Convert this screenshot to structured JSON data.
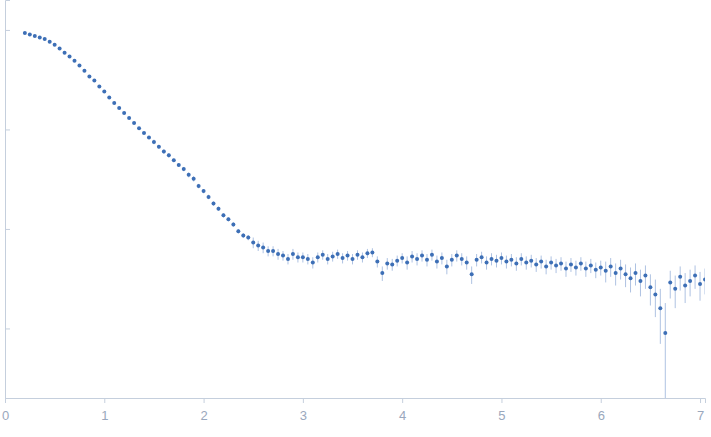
{
  "chart_data": {
    "type": "scatter",
    "log": "y",
    "tick_labels": "x",
    "color": "#3d6fb6",
    "marker": "circle",
    "xlim": [
      0,
      7.05
    ],
    "ylim": [
      0.0002,
      2
    ],
    "xticks": [
      0,
      1,
      2,
      3,
      4,
      5,
      6,
      7
    ],
    "yticks": [
      0.001,
      0.01,
      0.1,
      1
    ],
    "x": [
      0.2,
      0.25,
      0.3,
      0.35,
      0.4,
      0.45,
      0.5,
      0.55,
      0.6,
      0.65,
      0.7,
      0.75,
      0.8,
      0.85,
      0.9,
      0.95,
      1.0,
      1.05,
      1.1,
      1.15,
      1.2,
      1.25,
      1.3,
      1.35,
      1.4,
      1.45,
      1.5,
      1.55,
      1.6,
      1.65,
      1.7,
      1.75,
      1.8,
      1.85,
      1.9,
      1.95,
      2.0,
      2.05,
      2.1,
      2.15,
      2.2,
      2.25,
      2.3,
      2.35,
      2.4,
      2.45,
      2.5,
      2.55,
      2.6,
      2.65,
      2.7,
      2.75,
      2.8,
      2.85,
      2.9,
      2.95,
      3.0,
      3.05,
      3.1,
      3.15,
      3.2,
      3.25,
      3.3,
      3.35,
      3.4,
      3.45,
      3.5,
      3.55,
      3.6,
      3.65,
      3.7,
      3.75,
      3.8,
      3.85,
      3.9,
      3.95,
      4.0,
      4.05,
      4.1,
      4.15,
      4.2,
      4.25,
      4.3,
      4.35,
      4.4,
      4.45,
      4.5,
      4.55,
      4.6,
      4.65,
      4.7,
      4.75,
      4.8,
      4.85,
      4.9,
      4.95,
      5.0,
      5.05,
      5.1,
      5.15,
      5.2,
      5.25,
      5.3,
      5.35,
      5.4,
      5.45,
      5.5,
      5.55,
      5.6,
      5.65,
      5.7,
      5.75,
      5.8,
      5.85,
      5.9,
      5.95,
      6.0,
      6.05,
      6.1,
      6.15,
      6.2,
      6.25,
      6.3,
      6.35,
      6.4,
      6.45,
      6.5,
      6.55,
      6.6,
      6.65,
      6.7,
      6.75,
      6.8,
      6.85,
      6.9,
      6.95,
      7.0,
      7.05
    ],
    "values": [
      0.93,
      0.9,
      0.87,
      0.84,
      0.81,
      0.76,
      0.71,
      0.65,
      0.59,
      0.54,
      0.49,
      0.44,
      0.39,
      0.34,
      0.31,
      0.27,
      0.24,
      0.21,
      0.184,
      0.164,
      0.146,
      0.13,
      0.116,
      0.103,
      0.092,
      0.083,
      0.075,
      0.067,
      0.06,
      0.055,
      0.049,
      0.044,
      0.04,
      0.035,
      0.032,
      0.027,
      0.024,
      0.021,
      0.018,
      0.016,
      0.0137,
      0.0125,
      0.0111,
      0.0095,
      0.0086,
      0.0082,
      0.0073,
      0.0068,
      0.0065,
      0.006,
      0.006,
      0.0056,
      0.0054,
      0.005,
      0.0056,
      0.0052,
      0.0052,
      0.005,
      0.0046,
      0.0052,
      0.0055,
      0.005,
      0.0053,
      0.0056,
      0.0051,
      0.0054,
      0.005,
      0.0055,
      0.0052,
      0.0057,
      0.0058,
      0.0047,
      0.0036,
      0.0045,
      0.0044,
      0.0048,
      0.0051,
      0.0046,
      0.0053,
      0.005,
      0.0054,
      0.0049,
      0.0055,
      0.0047,
      0.0051,
      0.0042,
      0.0049,
      0.0054,
      0.005,
      0.0046,
      0.0035,
      0.0049,
      0.0052,
      0.0046,
      0.005,
      0.0048,
      0.0051,
      0.0047,
      0.0049,
      0.0045,
      0.005,
      0.0046,
      0.0048,
      0.0044,
      0.0047,
      0.0042,
      0.0046,
      0.0043,
      0.0045,
      0.004,
      0.0044,
      0.0041,
      0.0045,
      0.004,
      0.0043,
      0.0039,
      0.0041,
      0.0038,
      0.0042,
      0.0036,
      0.004,
      0.0035,
      0.0032,
      0.0036,
      0.003,
      0.0034,
      0.0026,
      0.0022,
      0.0016,
      0.0009,
      0.0029,
      0.0025,
      0.0033,
      0.0027,
      0.003,
      0.0034,
      0.0028,
      0.0031
    ],
    "errors": [
      0.014,
      0.013,
      0.013,
      0.012,
      0.012,
      0.011,
      0.011,
      0.01,
      0.009,
      0.008,
      0.007,
      0.007,
      0.006,
      0.005,
      0.005,
      0.004,
      0.004,
      0.003,
      0.003,
      0.003,
      0.002,
      0.002,
      0.002,
      0.002,
      0.002,
      0.002,
      0.004,
      0.003,
      0.003,
      0.003,
      0.002,
      0.002,
      0.002,
      0.002,
      0.002,
      0.0014,
      0.0012,
      0.0011,
      0.0009,
      0.0008,
      0.0007,
      0.0006,
      0.0006,
      0.0005,
      0.0005,
      0.0005,
      0.0009,
      0.0008,
      0.0008,
      0.0007,
      0.0007,
      0.0007,
      0.0006,
      0.0006,
      0.0007,
      0.0006,
      0.0006,
      0.0006,
      0.0006,
      0.0006,
      0.0006,
      0.0006,
      0.0006,
      0.0006,
      0.0006,
      0.0006,
      0.0006,
      0.0006,
      0.0006,
      0.0006,
      0.0006,
      0.0006,
      0.0006,
      0.0006,
      0.0006,
      0.0006,
      0.0006,
      0.0007,
      0.0007,
      0.0007,
      0.0007,
      0.0007,
      0.0007,
      0.0007,
      0.0007,
      0.0007,
      0.0007,
      0.0007,
      0.0007,
      0.0007,
      0.0007,
      0.0007,
      0.0007,
      0.0007,
      0.0007,
      0.0007,
      0.0007,
      0.0007,
      0.0007,
      0.0007,
      0.0007,
      0.0007,
      0.0007,
      0.0007,
      0.0007,
      0.0007,
      0.0007,
      0.0007,
      0.0007,
      0.0007,
      0.0007,
      0.0007,
      0.0007,
      0.0007,
      0.0007,
      0.0007,
      0.0007,
      0.0009,
      0.0009,
      0.0009,
      0.0009,
      0.0009,
      0.0009,
      0.0009,
      0.0009,
      0.0009,
      0.0009,
      0.0009,
      0.0009,
      0.0009,
      0.0009,
      0.0009,
      0.0009,
      0.0009,
      0.0009,
      0.0009,
      0.0009,
      0.0009
    ]
  }
}
